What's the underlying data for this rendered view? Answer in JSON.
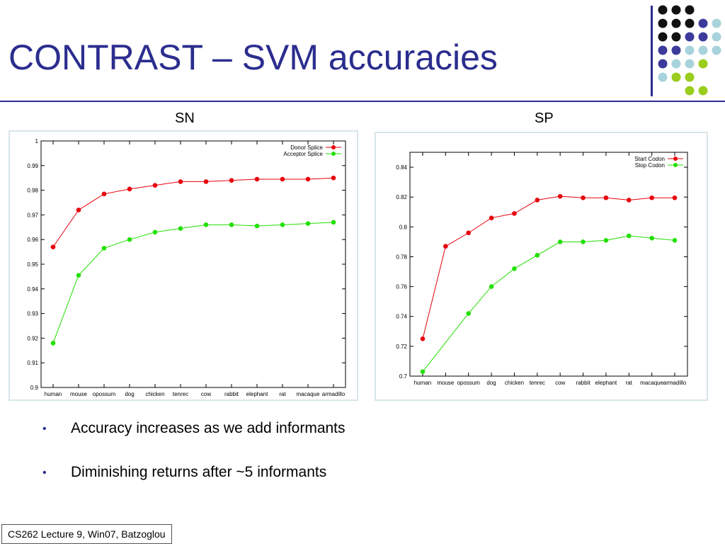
{
  "slide": {
    "title": "CONTRAST – SVM accuracies",
    "bullets": [
      "Accuracy increases as we add informants",
      "Diminishing returns after ~5 informants"
    ],
    "footer": "CS262 Lecture 9, Win07, Batzoglou"
  },
  "colors": {
    "title": "#2b2d8e",
    "red_series": "#e8000b",
    "green_series": "#22e000",
    "dots_dark": "#111111",
    "dots_indigo": "#3c3a9a",
    "dots_lightblue": "#a9d3dc",
    "dots_lime": "#9acd1e"
  },
  "chart_data": [
    {
      "type": "line",
      "title": "SN",
      "categories": [
        "human",
        "mouse",
        "opossum",
        "dog",
        "chicken",
        "tenrec",
        "cow",
        "rabbit",
        "elephant",
        "rat",
        "macaque",
        "armadillo"
      ],
      "series": [
        {
          "name": "Donor Splice",
          "values": [
            0.957,
            0.972,
            0.9785,
            0.9805,
            0.982,
            0.9835,
            0.9835,
            0.984,
            0.9845,
            0.9845,
            0.9845,
            0.985
          ]
        },
        {
          "name": "Acceptor Splice",
          "values": [
            0.918,
            0.9455,
            0.9565,
            0.96,
            0.963,
            0.9645,
            0.966,
            0.966,
            0.9655,
            0.966,
            0.9665,
            0.967
          ]
        }
      ],
      "ylim": [
        0.9,
        1.0
      ],
      "yticks": [
        "0.9",
        "0.91",
        "0.92",
        "0.93",
        "0.94",
        "0.95",
        "0.96",
        "0.97",
        "0.98",
        "0.99",
        "1"
      ],
      "legend": "top-right",
      "grid": false
    },
    {
      "type": "line",
      "title": "SP",
      "categories": [
        "human",
        "mouse",
        "opossum",
        "dog",
        "chicken",
        "tenrec",
        "cow",
        "rabbit",
        "elephant",
        "rat",
        "macaque",
        "armadillo"
      ],
      "series": [
        {
          "name": "Start Codon",
          "values": [
            0.725,
            0.787,
            0.796,
            0.806,
            0.809,
            0.818,
            0.8205,
            0.8195,
            0.8195,
            0.818,
            0.8195,
            0.8195
          ]
        },
        {
          "name": "Stop Codon",
          "values": [
            0.703,
            null,
            0.742,
            0.76,
            0.772,
            0.781,
            0.79,
            0.79,
            0.791,
            0.794,
            0.7925,
            0.791
          ]
        }
      ],
      "ylim": [
        0.7,
        0.85
      ],
      "yticks": [
        "0.7",
        "0.72",
        "0.74",
        "0.76",
        "0.78",
        "0.8",
        "0.82",
        "0.84"
      ],
      "legend": "top-right",
      "grid": false
    }
  ]
}
